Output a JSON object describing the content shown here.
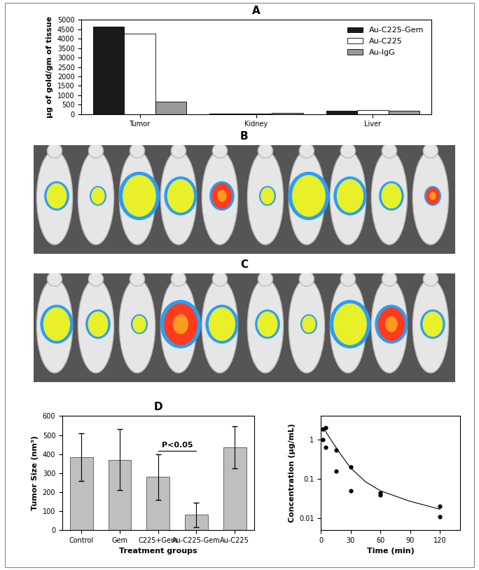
{
  "chart_data": [
    {
      "type": "bar",
      "title": "A",
      "categories": [
        "Tumor",
        "Kidney",
        "Liver"
      ],
      "y_label": "μg of gold/gm of tissue",
      "series": [
        {
          "name": "Au-C225-Gem",
          "color": "#1a1a1a",
          "values": [
            4650,
            20,
            160
          ]
        },
        {
          "name": "Au-C225",
          "color": "#ffffff",
          "values": [
            4280,
            15,
            210
          ]
        },
        {
          "name": "Au-IgG",
          "color": "#999999",
          "values": [
            650,
            50,
            160
          ]
        }
      ],
      "ylim": [
        0,
        5000
      ],
      "yticks": [
        0,
        500,
        1000,
        1500,
        2000,
        2500,
        3000,
        3500,
        4000,
        4500,
        5000
      ],
      "legend": "upper right"
    },
    {
      "type": "image",
      "title": "B"
    },
    {
      "type": "image",
      "title": "C"
    },
    {
      "type": "bar",
      "title": "D",
      "categories": [
        "Control",
        "Gem",
        "C225+Gem",
        "Au-C225-Gem",
        "Au-C225"
      ],
      "values": [
        385,
        370,
        280,
        80,
        435
      ],
      "errors": [
        125,
        160,
        120,
        65,
        110
      ],
      "color": "#bfbfbf",
      "x_label": "Treatment groups",
      "y_label": "Tumor Size (nm³)",
      "annotation": "P<0.05",
      "ylim": [
        0,
        600
      ],
      "yticks": [
        0,
        100,
        200,
        300,
        400,
        500,
        600
      ]
    },
    {
      "type": "scatter",
      "x_label": "Time (min)",
      "y_label": "Concentration (μg/mL)",
      "log": "y",
      "series": [
        {
          "type": "scatter",
          "color": "#000000",
          "marker": "o",
          "x": [
            2,
            2,
            5,
            5,
            15,
            15,
            30,
            30,
            60,
            60,
            120,
            120
          ],
          "values": [
            1.9,
            1.0,
            2.0,
            0.65,
            0.55,
            0.16,
            0.2,
            0.05,
            0.045,
            0.04,
            0.02,
            0.011
          ]
        },
        {
          "type": "line",
          "color": "#000000",
          "line_style": "solid",
          "x": [
            2,
            5,
            10,
            15,
            20,
            30,
            45,
            60,
            90,
            120
          ],
          "values": [
            1.9,
            1.6,
            1.0,
            0.65,
            0.42,
            0.19,
            0.085,
            0.05,
            0.027,
            0.017
          ]
        }
      ],
      "xlim": [
        0,
        140
      ],
      "xticks": [
        0,
        30,
        60,
        90,
        120
      ],
      "ylim": [
        0.005,
        4
      ],
      "yticks": [
        0.01,
        0.1,
        1
      ]
    }
  ]
}
